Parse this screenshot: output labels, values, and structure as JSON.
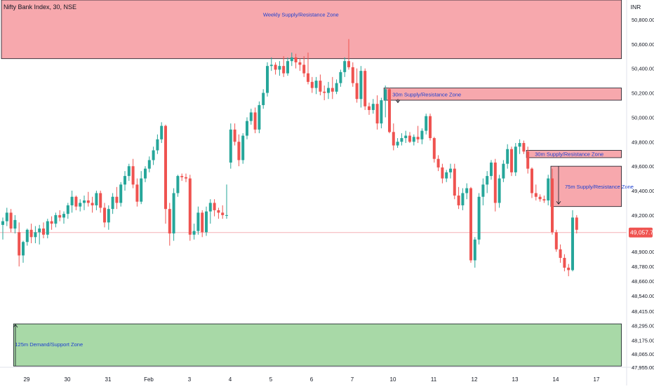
{
  "header": {
    "title": "Nifty Bank Index, 30, NSE",
    "currency": "INR"
  },
  "colors": {
    "up": "#26a69a",
    "down": "#ef5350",
    "supply_zone": "#f7a8ad",
    "demand_zone": "#a8d9a7",
    "zone_text": "#1e40d0",
    "price_line": "#f07c86",
    "axis_text": "#131722"
  },
  "chart_data": {
    "type": "candlestick",
    "y_axis": {
      "ylim": [
        47955,
        50960
      ],
      "ticks": [
        {
          "value": 50800,
          "label": "50,800.00"
        },
        {
          "value": 50600,
          "label": "50,600.00"
        },
        {
          "value": 50400,
          "label": "50,400.00"
        },
        {
          "value": 50200,
          "label": "50,200.00"
        },
        {
          "value": 50000,
          "label": "50,000.00"
        },
        {
          "value": 49800,
          "label": "49,800.00"
        },
        {
          "value": 49600,
          "label": "49,600.00"
        },
        {
          "value": 49400,
          "label": "49,400.00"
        },
        {
          "value": 49200,
          "label": "49,200.00"
        },
        {
          "value": 48900,
          "label": "48,900.00"
        },
        {
          "value": 48780,
          "label": "48,780.00"
        },
        {
          "value": 48660,
          "label": "48,660.00"
        },
        {
          "value": 48540,
          "label": "48,540.00"
        },
        {
          "value": 48415,
          "label": "48,415.00"
        },
        {
          "value": 48295,
          "label": "48,295.00"
        },
        {
          "value": 48175,
          "label": "48,175.00"
        },
        {
          "value": 48065,
          "label": "48,065.00"
        },
        {
          "value": 47955,
          "label": "47,955.00"
        }
      ]
    },
    "x_axis": {
      "range": [
        0,
        152
      ],
      "labels": [
        {
          "index": 5,
          "label": "29"
        },
        {
          "index": 15,
          "label": "30"
        },
        {
          "index": 25,
          "label": "31"
        },
        {
          "index": 35,
          "label": "Feb"
        },
        {
          "index": 45,
          "label": "3"
        },
        {
          "index": 55,
          "label": "4"
        },
        {
          "index": 65,
          "label": "5"
        },
        {
          "index": 75,
          "label": "6"
        },
        {
          "index": 85,
          "label": "7"
        },
        {
          "index": 95,
          "label": "10"
        },
        {
          "index": 105,
          "label": "11"
        },
        {
          "index": 115,
          "label": "12"
        },
        {
          "index": 125,
          "label": "13"
        },
        {
          "index": 135,
          "label": "14"
        },
        {
          "index": 145,
          "label": "17"
        }
      ]
    },
    "last_price": {
      "value": 49057.75,
      "label": "49,057.75"
    },
    "zones": [
      {
        "kind": "supply",
        "label": "Weekly Supply/Resistance Zone",
        "x_start": 0,
        "x_end": 152,
        "y_low": 50480,
        "y_high": 50960
      },
      {
        "kind": "supply",
        "label": "30m Supply/Resistance Zone",
        "x_start": 94,
        "x_end": 152,
        "y_low": 50140,
        "y_high": 50240
      },
      {
        "kind": "supply",
        "label": "30m Supply/Resistance Zone",
        "x_start": 129,
        "x_end": 152,
        "y_low": 49670,
        "y_high": 49730
      },
      {
        "kind": "supply",
        "label": "75m Supply/Resistance Zone",
        "x_start": 135,
        "x_end": 152,
        "y_low": 49270,
        "y_high": 49600
      },
      {
        "kind": "demand",
        "label": "125m Demand/Support Zone",
        "x_start": 3,
        "x_end": 152,
        "y_low": 47965,
        "y_high": 48310
      }
    ],
    "candles": [
      [
        0,
        49120,
        49180,
        49000,
        49150
      ],
      [
        1,
        49150,
        49260,
        49110,
        49220
      ],
      [
        2,
        49220,
        49250,
        49060,
        49090
      ],
      [
        3,
        49090,
        49200,
        49050,
        49160
      ],
      [
        4,
        49060,
        49140,
        48780,
        48870
      ],
      [
        5,
        48870,
        48990,
        48810,
        48980
      ],
      [
        6,
        48980,
        49090,
        48950,
        49080
      ],
      [
        7,
        49080,
        49130,
        48970,
        49020
      ],
      [
        8,
        49020,
        49110,
        48970,
        49060
      ],
      [
        9,
        49060,
        49120,
        48960,
        49090
      ],
      [
        10,
        49090,
        49140,
        49010,
        49040
      ],
      [
        11,
        49040,
        49170,
        49010,
        49150
      ],
      [
        12,
        49150,
        49190,
        49080,
        49130
      ],
      [
        13,
        49130,
        49220,
        49100,
        49200
      ],
      [
        14,
        49200,
        49240,
        49150,
        49180
      ],
      [
        15,
        49180,
        49230,
        49130,
        49210
      ],
      [
        16,
        49210,
        49300,
        49170,
        49280
      ],
      [
        17,
        49280,
        49400,
        49220,
        49350
      ],
      [
        18,
        49350,
        49360,
        49240,
        49270
      ],
      [
        19,
        49270,
        49330,
        49230,
        49300
      ],
      [
        20,
        49300,
        49360,
        49240,
        49320
      ],
      [
        21,
        49320,
        49390,
        49270,
        49300
      ],
      [
        22,
        49300,
        49350,
        49220,
        49280
      ],
      [
        23,
        49280,
        49400,
        49240,
        49380
      ],
      [
        24,
        49380,
        49400,
        49220,
        49260
      ],
      [
        25,
        49260,
        49300,
        49100,
        49140
      ],
      [
        26,
        49140,
        49280,
        49080,
        49250
      ],
      [
        27,
        49250,
        49380,
        49210,
        49350
      ],
      [
        28,
        49350,
        49430,
        49250,
        49300
      ],
      [
        29,
        49300,
        49470,
        49270,
        49450
      ],
      [
        30,
        49450,
        49560,
        49400,
        49520
      ],
      [
        31,
        49520,
        49620,
        49480,
        49600
      ],
      [
        32,
        49600,
        49660,
        49420,
        49450
      ],
      [
        33,
        49450,
        49500,
        49270,
        49310
      ],
      [
        34,
        49310,
        49560,
        49290,
        49500
      ],
      [
        35,
        49500,
        49600,
        49470,
        49580
      ],
      [
        36,
        49580,
        49680,
        49550,
        49650
      ],
      [
        37,
        49650,
        49760,
        49610,
        49730
      ],
      [
        38,
        49730,
        49860,
        49700,
        49820
      ],
      [
        39,
        49820,
        49960,
        49790,
        49930
      ],
      [
        40,
        49930,
        49940,
        49130,
        49250
      ],
      [
        41,
        49250,
        49300,
        48950,
        49050
      ],
      [
        42,
        49050,
        49420,
        48990,
        49380
      ],
      [
        43,
        49380,
        49530,
        49350,
        49520
      ],
      [
        44,
        49520,
        49540,
        49480,
        49510
      ],
      [
        45,
        49510,
        49540,
        49470,
        49500
      ],
      [
        46,
        49500,
        49530,
        48990,
        49040
      ],
      [
        47,
        49040,
        49130,
        49000,
        49070
      ],
      [
        48,
        49070,
        49270,
        49040,
        49220
      ],
      [
        49,
        49220,
        49240,
        49020,
        49060
      ],
      [
        50,
        49060,
        49270,
        49030,
        49230
      ],
      [
        51,
        49230,
        49330,
        49130,
        49300
      ],
      [
        52,
        49300,
        49330,
        49190,
        49240
      ],
      [
        53,
        49240,
        49260,
        49170,
        49220
      ],
      [
        54,
        49220,
        49280,
        49170,
        49200
      ],
      [
        55,
        49200,
        49450,
        49170,
        49200
      ],
      [
        56,
        49630,
        49950,
        49580,
        49900
      ],
      [
        57,
        49900,
        49950,
        49770,
        49800
      ],
      [
        58,
        49800,
        49860,
        49600,
        49650
      ],
      [
        59,
        49650,
        49870,
        49620,
        49850
      ],
      [
        60,
        49850,
        50000,
        49820,
        49970
      ],
      [
        61,
        49970,
        50070,
        49940,
        50040
      ],
      [
        62,
        50040,
        50080,
        49870,
        49900
      ],
      [
        63,
        49900,
        50130,
        49870,
        50100
      ],
      [
        64,
        50100,
        50230,
        50070,
        50200
      ],
      [
        65,
        50200,
        50450,
        50170,
        50420
      ],
      [
        66,
        50420,
        50490,
        50380,
        50430
      ],
      [
        67,
        50430,
        50450,
        50350,
        50390
      ],
      [
        68,
        50390,
        50460,
        50340,
        50420
      ],
      [
        69,
        50420,
        50500,
        50330,
        50360
      ],
      [
        70,
        50360,
        50490,
        50340,
        50460
      ],
      [
        71,
        50460,
        50530,
        50420,
        50490
      ],
      [
        72,
        50490,
        50520,
        50400,
        50450
      ],
      [
        73,
        50450,
        50480,
        50380,
        50430
      ],
      [
        74,
        50430,
        50500,
        50330,
        50360
      ],
      [
        75,
        50360,
        50530,
        50270,
        50290
      ],
      [
        76,
        50290,
        50330,
        50200,
        50240
      ],
      [
        77,
        50240,
        50330,
        50190,
        50300
      ],
      [
        78,
        50300,
        50350,
        50180,
        50210
      ],
      [
        79,
        50210,
        50260,
        50140,
        50200
      ],
      [
        80,
        50200,
        50290,
        50150,
        50240
      ],
      [
        81,
        50240,
        50330,
        50150,
        50210
      ],
      [
        82,
        50210,
        50310,
        50190,
        50280
      ],
      [
        83,
        50280,
        50390,
        50250,
        50370
      ],
      [
        84,
        50370,
        50490,
        50330,
        50460
      ],
      [
        85,
        50460,
        50640,
        50390,
        50410
      ],
      [
        86,
        50410,
        50450,
        50250,
        50280
      ],
      [
        87,
        50280,
        50400,
        50120,
        50150
      ],
      [
        88,
        50150,
        50420,
        50080,
        50380
      ],
      [
        89,
        50380,
        50400,
        50060,
        50090
      ],
      [
        90,
        50090,
        50120,
        50020,
        50060
      ],
      [
        91,
        50060,
        50150,
        50030,
        50110
      ],
      [
        92,
        50110,
        50180,
        49900,
        49950
      ],
      [
        93,
        49950,
        50160,
        49910,
        50140
      ],
      [
        94,
        50140,
        50260,
        50000,
        50230
      ],
      [
        95,
        50230,
        50240,
        49870,
        49880
      ],
      [
        96,
        49880,
        49950,
        49730,
        49770
      ],
      [
        97,
        49770,
        49830,
        49750,
        49800
      ],
      [
        98,
        49800,
        49870,
        49770,
        49830
      ],
      [
        99,
        49830,
        49890,
        49790,
        49850
      ],
      [
        100,
        49850,
        49880,
        49790,
        49800
      ],
      [
        101,
        49800,
        49860,
        49770,
        49840
      ],
      [
        102,
        49840,
        49930,
        49790,
        49820
      ],
      [
        103,
        49820,
        49910,
        49780,
        49890
      ],
      [
        104,
        49890,
        50030,
        49860,
        50010
      ],
      [
        105,
        50010,
        50030,
        49810,
        49830
      ],
      [
        106,
        49830,
        49840,
        49630,
        49660
      ],
      [
        107,
        49660,
        49690,
        49560,
        49590
      ],
      [
        108,
        49590,
        49620,
        49460,
        49500
      ],
      [
        109,
        49500,
        49570,
        49470,
        49550
      ],
      [
        110,
        49550,
        49620,
        49500,
        49580
      ],
      [
        111,
        49580,
        49620,
        49330,
        49360
      ],
      [
        112,
        49360,
        49430,
        49250,
        49280
      ],
      [
        113,
        49280,
        49420,
        49240,
        49380
      ],
      [
        114,
        49380,
        49460,
        49330,
        49420
      ],
      [
        115,
        49420,
        49430,
        48810,
        48830
      ],
      [
        116,
        48830,
        49020,
        48770,
        49000
      ],
      [
        117,
        49000,
        49380,
        48960,
        49350
      ],
      [
        118,
        49350,
        49500,
        49280,
        49450
      ],
      [
        119,
        49450,
        49560,
        49380,
        49520
      ],
      [
        120,
        49520,
        49650,
        49490,
        49630
      ],
      [
        121,
        49630,
        49660,
        49230,
        49300
      ],
      [
        122,
        49300,
        49530,
        49260,
        49500
      ],
      [
        123,
        49500,
        49650,
        49470,
        49620
      ],
      [
        124,
        49620,
        49780,
        49580,
        49740
      ],
      [
        125,
        49740,
        49760,
        49520,
        49550
      ],
      [
        126,
        49550,
        49790,
        49520,
        49760
      ],
      [
        127,
        49760,
        49820,
        49700,
        49790
      ],
      [
        128,
        49790,
        49810,
        49700,
        49720
      ],
      [
        129,
        49720,
        49760,
        49540,
        49580
      ],
      [
        130,
        49580,
        49590,
        49340,
        49380
      ],
      [
        131,
        49380,
        49450,
        49320,
        49350
      ],
      [
        132,
        49350,
        49370,
        49310,
        49330
      ],
      [
        133,
        49330,
        49360,
        49300,
        49320
      ],
      [
        134,
        49320,
        49530,
        49280,
        49500
      ],
      [
        135,
        49500,
        49580,
        49040,
        49060
      ],
      [
        136,
        49060,
        49080,
        48900,
        48920
      ],
      [
        137,
        48920,
        48960,
        48810,
        48850
      ],
      [
        138,
        48850,
        48880,
        48740,
        48770
      ],
      [
        139,
        48770,
        48800,
        48700,
        48750
      ],
      [
        140,
        48750,
        49240,
        48740,
        49180
      ],
      [
        141,
        49180,
        49200,
        49050,
        49080
      ]
    ]
  }
}
